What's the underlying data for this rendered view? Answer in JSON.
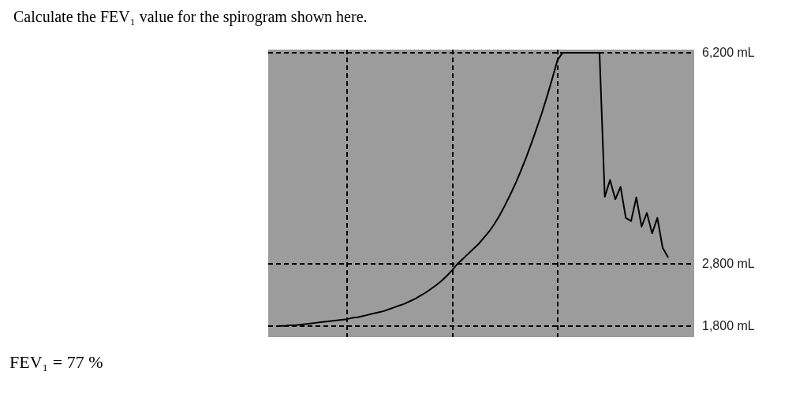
{
  "chart_data": {
    "type": "line",
    "title": "Calculate the FEV₁ value for the spirogram shown here.",
    "annotations": [
      "FEV₁ = 77 %"
    ],
    "categories": [
      null,
      null,
      null,
      null,
      null,
      null,
      null,
      null,
      null,
      null,
      null,
      null,
      null,
      null,
      null,
      null,
      null,
      null,
      null,
      null,
      null,
      null,
      null,
      null,
      null,
      null,
      null,
      null,
      null,
      null,
      null,
      null,
      null,
      null,
      null,
      null,
      null,
      null,
      null,
      null,
      null,
      null,
      null,
      null,
      null,
      null,
      null,
      null,
      null,
      null,
      null,
      null,
      null,
      null,
      null,
      null,
      null,
      null,
      null,
      null,
      null,
      null,
      null,
      null,
      null,
      null,
      null,
      null,
      null,
      null,
      null,
      null,
      null,
      null,
      null,
      null,
      null,
      null,
      null,
      null,
      null,
      null
    ],
    "series": [
      {
        "color": "#000000",
        "values": [
          null,
          null,
          1800,
          1800,
          1810,
          1810,
          1820,
          1830,
          1840,
          1850,
          1860,
          1870,
          1880,
          1890,
          1900,
          1910,
          1930,
          1940,
          1960,
          1980,
          2000,
          2020,
          2040,
          2070,
          2100,
          2130,
          2160,
          2200,
          2240,
          2290,
          2340,
          2400,
          2460,
          2530,
          2610,
          2700,
          2800,
          2880,
          2960,
          3040,
          3120,
          3220,
          3320,
          3440,
          3580,
          3740,
          3910,
          4090,
          4290,
          4500,
          4730,
          4970,
          5220,
          5490,
          5780,
          6080,
          6200,
          6200,
          6200,
          6200,
          6200,
          6200,
          6200,
          6200,
          3880,
          4150,
          3840,
          4040,
          3540,
          3490,
          3870,
          3400,
          3620,
          3290,
          3540,
          3060,
          2910,
          null,
          null,
          null,
          null,
          null
        ]
      }
    ],
    "ylim": [
      1620,
      6250
    ],
    "yticks": [
      {
        "value": 1800,
        "label": "1,800 mL"
      },
      {
        "value": 2800,
        "label": "2,800 mL"
      },
      {
        "value": 6200,
        "label": "6,200 mL"
      }
    ],
    "tick_labels": "y",
    "grid": true,
    "line_style": "solid"
  }
}
